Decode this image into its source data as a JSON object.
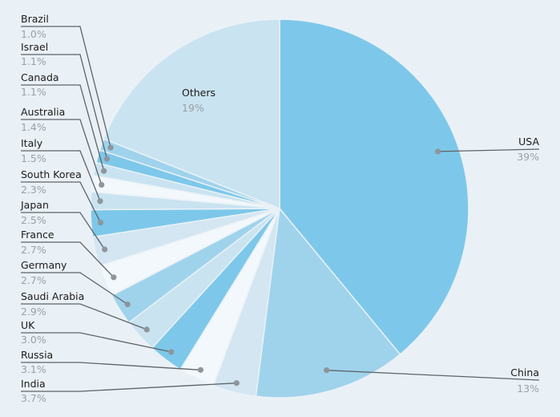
{
  "chart_data": {
    "type": "pie",
    "title": "",
    "start_angle_deg": 0,
    "direction": "clockwise",
    "slices": [
      {
        "label": "USA",
        "value_text": "39%",
        "value": 39,
        "color": "#7dc8ea"
      },
      {
        "label": "China",
        "value_text": "13%",
        "value": 13,
        "color": "#9fd3ec"
      },
      {
        "label": "India",
        "value_text": "3.7%",
        "value": 3.7,
        "color": "#d3e6f2"
      },
      {
        "label": "Russia",
        "value_text": "3.1%",
        "value": 3.1,
        "color": "#f2f8fb"
      },
      {
        "label": "UK",
        "value_text": "3.0%",
        "value": 3.0,
        "color": "#7dc8ea"
      },
      {
        "label": "Saudi Arabia",
        "value_text": "2.9%",
        "value": 2.9,
        "color": "#c9e3f1"
      },
      {
        "label": "Germany",
        "value_text": "2.7%",
        "value": 2.7,
        "color": "#9fd3ec"
      },
      {
        "label": "France",
        "value_text": "2.7%",
        "value": 2.7,
        "color": "#f2f8fb"
      },
      {
        "label": "Japan",
        "value_text": "2.5%",
        "value": 2.5,
        "color": "#d3e6f2"
      },
      {
        "label": "South Korea",
        "value_text": "2.3%",
        "value": 2.3,
        "color": "#7dc8ea"
      },
      {
        "label": "Italy",
        "value_text": "1.5%",
        "value": 1.5,
        "color": "#c9e3f1"
      },
      {
        "label": "Australia",
        "value_text": "1.4%",
        "value": 1.4,
        "color": "#f2f8fb"
      },
      {
        "label": "Canada",
        "value_text": "1.1%",
        "value": 1.1,
        "color": "#c9e3f1"
      },
      {
        "label": "Israel",
        "value_text": "1.1%",
        "value": 1.1,
        "color": "#7dc8ea"
      },
      {
        "label": "Brazil",
        "value_text": "1.0%",
        "value": 1.0,
        "color": "#9fd3ec"
      },
      {
        "label": "Others",
        "value_text": "19%",
        "value": 19,
        "color": "#c9e3f1"
      }
    ]
  }
}
